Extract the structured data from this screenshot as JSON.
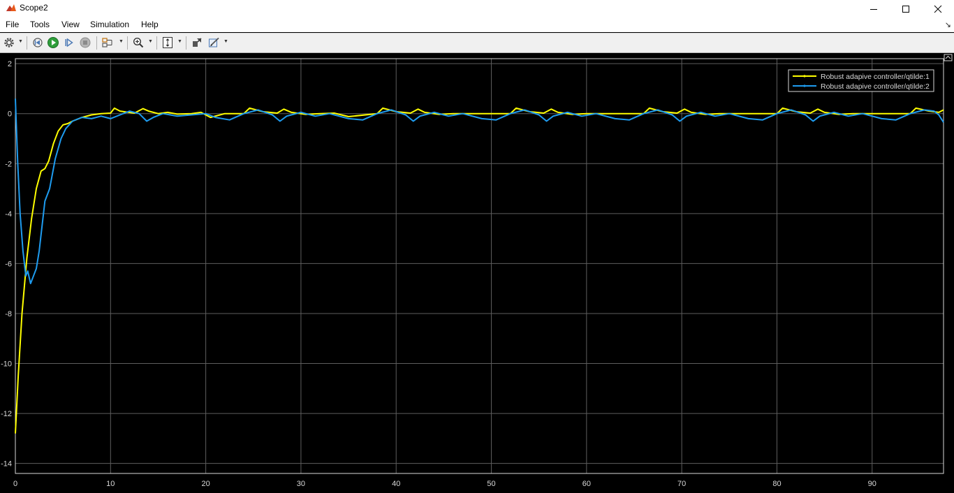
{
  "window": {
    "title": "Scope2"
  },
  "menu": [
    "File",
    "Tools",
    "View",
    "Simulation",
    "Help"
  ],
  "toolbar": {
    "icons": [
      "gear-icon",
      "rewind-icon",
      "run-icon",
      "step-forward-icon",
      "stop-icon",
      "signal-select-icon",
      "zoom-in-icon",
      "autoscale-icon",
      "highlight-block-icon",
      "style-icon"
    ]
  },
  "colors": {
    "plot_bg": "#000000",
    "axes_color": "#d9d9d9",
    "grid": "#5e5e5e",
    "series1": "#ffff00",
    "series2": "#1e9cf0"
  },
  "chart_data": {
    "type": "line",
    "title": "",
    "xlabel": "",
    "ylabel": "",
    "xlim": [
      0,
      97.5
    ],
    "ylim": [
      -14.4,
      2.2
    ],
    "xticks": [
      0,
      10,
      20,
      30,
      40,
      50,
      60,
      70,
      80,
      90
    ],
    "yticks": [
      2,
      0,
      -2,
      -4,
      -6,
      -8,
      -10,
      -12,
      -14
    ],
    "grid": true,
    "legend_position": "top-right",
    "series": [
      {
        "name": "Robust adapive controller/qtilde:1",
        "color": "#ffff00",
        "x": [
          0,
          0.3,
          0.7,
          1.2,
          1.7,
          2.2,
          2.7,
          3.1,
          3.5,
          4.0,
          4.5,
          5.0,
          5.5,
          6.0,
          7.0,
          8.0,
          9.0,
          10.0,
          10.4,
          11.0,
          12.5,
          13.4,
          14.0,
          15.0,
          16.0,
          17.0,
          18.5,
          19.5,
          20.5,
          22.0,
          24.0,
          24.6,
          26.0,
          27.5,
          28.2,
          29.0,
          30.5,
          32.0,
          33.5,
          35.0,
          38.0,
          38.6,
          40.0,
          41.5,
          42.3,
          43.0,
          44.5,
          46.0,
          48.0,
          52.0,
          52.6,
          54.0,
          55.5,
          56.3,
          57.0,
          58.5,
          60.0,
          62.0,
          66.0,
          66.6,
          68.0,
          69.5,
          70.3,
          71.0,
          72.5,
          74.0,
          76.0,
          80.0,
          80.6,
          82.0,
          83.5,
          84.3,
          85.0,
          86.5,
          88.0,
          90.0,
          94.0,
          94.6,
          96.0,
          97.0,
          97.5
        ],
        "y": [
          -12.8,
          -10.5,
          -8.0,
          -5.8,
          -4.2,
          -3.0,
          -2.3,
          -2.2,
          -1.9,
          -1.2,
          -0.7,
          -0.45,
          -0.4,
          -0.3,
          -0.15,
          -0.05,
          0.0,
          0.02,
          0.22,
          0.1,
          0.02,
          0.2,
          0.1,
          0.0,
          0.05,
          -0.02,
          0.0,
          0.05,
          -0.15,
          0.0,
          0.0,
          0.22,
          0.08,
          0.02,
          0.18,
          0.05,
          -0.03,
          0.0,
          0.02,
          -0.12,
          0.0,
          0.22,
          0.08,
          0.02,
          0.18,
          0.05,
          -0.03,
          0.0,
          0.0,
          0.0,
          0.22,
          0.08,
          0.02,
          0.18,
          0.05,
          -0.03,
          0.0,
          0.0,
          0.0,
          0.22,
          0.08,
          0.02,
          0.18,
          0.05,
          -0.03,
          0.0,
          0.0,
          0.0,
          0.22,
          0.08,
          0.02,
          0.18,
          0.05,
          -0.03,
          0.0,
          0.0,
          0.0,
          0.22,
          0.1,
          0.05,
          0.15
        ]
      },
      {
        "name": "Robust adapive controller/qtilde:2",
        "color": "#1e9cf0",
        "x": [
          0,
          0.25,
          0.5,
          0.8,
          1.1,
          1.3,
          1.6,
          1.9,
          2.2,
          2.5,
          2.8,
          3.1,
          3.6,
          4.2,
          4.8,
          5.3,
          6.0,
          7.0,
          8.0,
          9.0,
          10.0,
          11.0,
          12.0,
          13.0,
          13.8,
          14.5,
          15.5,
          17.0,
          18.5,
          20.0,
          21.0,
          22.5,
          24.0,
          25.5,
          27.0,
          27.8,
          28.5,
          30.0,
          31.5,
          33.0,
          35.0,
          36.5,
          38.0,
          39.5,
          41.0,
          41.8,
          42.5,
          44.0,
          45.5,
          47.0,
          49.0,
          50.5,
          52.0,
          53.5,
          55.0,
          55.8,
          56.5,
          58.0,
          59.5,
          61.0,
          63.0,
          64.5,
          66.0,
          67.5,
          69.0,
          69.8,
          70.5,
          72.0,
          73.5,
          75.0,
          77.0,
          78.5,
          80.0,
          81.5,
          83.0,
          83.8,
          84.5,
          86.0,
          87.5,
          89.0,
          91.0,
          92.5,
          94.0,
          95.5,
          96.5,
          97.0,
          97.5
        ],
        "y": [
          0.6,
          -2.0,
          -4.0,
          -5.5,
          -6.5,
          -6.3,
          -6.8,
          -6.5,
          -6.2,
          -5.5,
          -4.5,
          -3.5,
          -3.0,
          -1.8,
          -1.0,
          -0.6,
          -0.3,
          -0.15,
          -0.2,
          -0.1,
          -0.2,
          -0.05,
          0.1,
          0.0,
          -0.3,
          -0.15,
          0.0,
          -0.1,
          -0.05,
          0.0,
          -0.15,
          -0.25,
          0.0,
          0.15,
          -0.05,
          -0.3,
          -0.1,
          0.05,
          -0.1,
          0.0,
          -0.2,
          -0.25,
          0.0,
          0.15,
          -0.05,
          -0.3,
          -0.1,
          0.05,
          -0.1,
          0.0,
          -0.2,
          -0.25,
          0.0,
          0.15,
          -0.05,
          -0.3,
          -0.1,
          0.05,
          -0.1,
          0.0,
          -0.2,
          -0.25,
          0.0,
          0.15,
          -0.05,
          -0.3,
          -0.1,
          0.05,
          -0.1,
          0.0,
          -0.2,
          -0.25,
          0.0,
          0.15,
          -0.05,
          -0.3,
          -0.1,
          0.05,
          -0.1,
          0.0,
          -0.2,
          -0.25,
          0.0,
          0.15,
          0.1,
          -0.05,
          -0.35
        ]
      }
    ]
  }
}
